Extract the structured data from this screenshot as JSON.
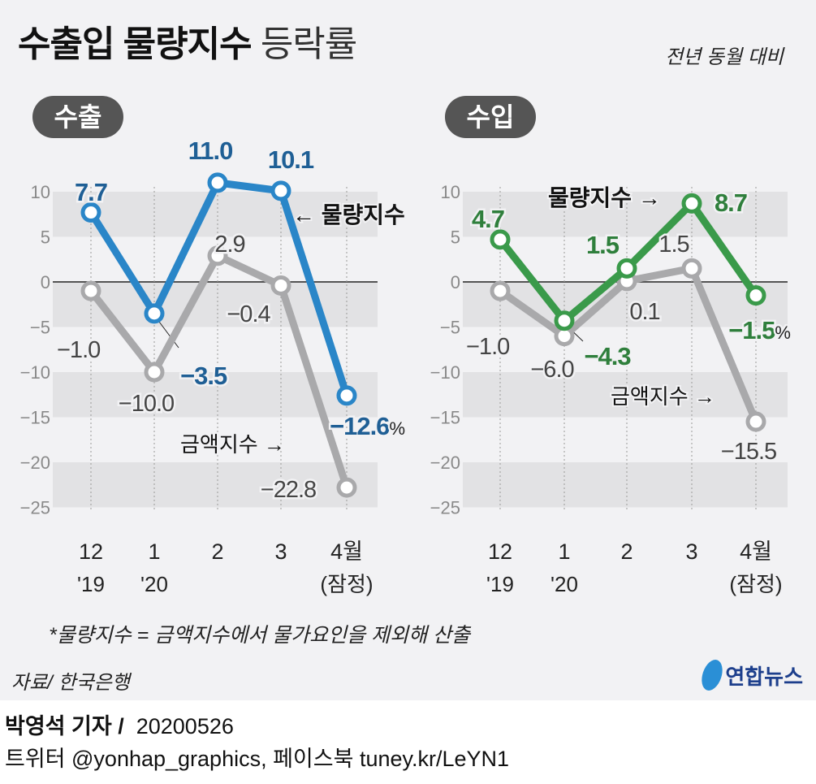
{
  "header": {
    "title_bold": "수출입 물량지수",
    "title_light": "등락률",
    "subtitle": "전년 동월 대비"
  },
  "footnote": "*물량지수 = 금액지수에서 물가요인을 제외해 산출",
  "source": "자료/ 한국은행",
  "logo": "연합뉴스",
  "byline": {
    "author": "박영석 기자 /",
    "date": "20200526"
  },
  "social": "트위터 @yonhap_graphics, 페이스북 tuney.kr/LeYN1",
  "colors": {
    "export": "#2a86c8",
    "export_label": "#1f5f95",
    "import": "#3a9a4a",
    "import_label": "#2f7f3c",
    "amount": "#a9a9ab",
    "amount_label": "#444444"
  },
  "chart_data": [
    {
      "type": "line",
      "title": "수출",
      "ylim": [
        -25,
        10
      ],
      "yticks": [
        "10",
        "5",
        "0",
        "−5",
        "−10",
        "−15",
        "−20",
        "−25"
      ],
      "ytick_values": [
        10,
        5,
        0,
        -5,
        -10,
        -15,
        -20,
        -25
      ],
      "categories": [
        "12",
        "1",
        "2",
        "3",
        "4월"
      ],
      "category_sub": [
        "'19",
        "'20",
        "",
        "",
        "(잠정)"
      ],
      "unit": "%",
      "series": [
        {
          "name": "물량지수",
          "values": [
            7.7,
            -3.5,
            11.0,
            10.1,
            -12.6
          ],
          "labels": [
            "7.7",
            "−3.5",
            "11.0",
            "10.1",
            "−12.6"
          ]
        },
        {
          "name": "금액지수",
          "values": [
            -1.0,
            -10.0,
            2.9,
            -0.4,
            -22.8
          ],
          "labels": [
            "−1.0",
            "−10.0",
            "2.9",
            "−0.4",
            "−22.8"
          ]
        }
      ]
    },
    {
      "type": "line",
      "title": "수입",
      "ylim": [
        -25,
        10
      ],
      "yticks": [
        "10",
        "5",
        "0",
        "−5",
        "−10",
        "−15",
        "−20",
        "−25"
      ],
      "ytick_values": [
        10,
        5,
        0,
        -5,
        -10,
        -15,
        -20,
        -25
      ],
      "categories": [
        "12",
        "1",
        "2",
        "3",
        "4월"
      ],
      "category_sub": [
        "'19",
        "'20",
        "",
        "",
        "(잠정)"
      ],
      "unit": "%",
      "series": [
        {
          "name": "물량지수",
          "values": [
            4.7,
            -4.3,
            1.5,
            8.7,
            -1.5
          ],
          "labels": [
            "4.7",
            "−4.3",
            "1.5",
            "8.7",
            "−1.5"
          ]
        },
        {
          "name": "금액지수",
          "values": [
            -1.0,
            -6.0,
            0.1,
            1.5,
            -15.5
          ],
          "labels": [
            "−1.0",
            "−6.0",
            "0.1",
            "1.5",
            "−15.5"
          ]
        }
      ]
    }
  ]
}
